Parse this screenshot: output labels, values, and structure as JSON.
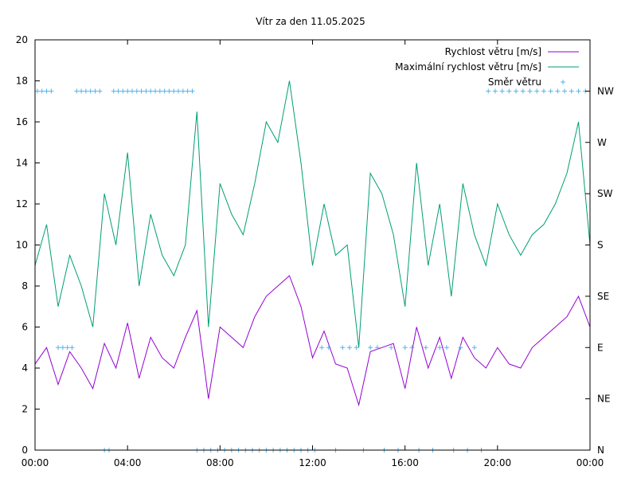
{
  "chart_data": {
    "type": "line",
    "title": "Vítr za den 11.05.2025",
    "xlabel": "",
    "ylabel": "",
    "xlim": [
      0,
      24
    ],
    "ylim": [
      0,
      20
    ],
    "x_ticks": [
      {
        "value": 0,
        "label": "00:00"
      },
      {
        "value": 4,
        "label": "04:00"
      },
      {
        "value": 8,
        "label": "08:00"
      },
      {
        "value": 12,
        "label": "12:00"
      },
      {
        "value": 16,
        "label": "16:00"
      },
      {
        "value": 20,
        "label": "20:00"
      },
      {
        "value": 24,
        "label": "00:00"
      }
    ],
    "y_ticks": [
      0,
      2,
      4,
      6,
      8,
      10,
      12,
      14,
      16,
      18,
      20
    ],
    "y2_ticks": [
      {
        "value": 0,
        "label": "N"
      },
      {
        "value": 2.5,
        "label": "NE"
      },
      {
        "value": 5,
        "label": "E"
      },
      {
        "value": 7.5,
        "label": "SE"
      },
      {
        "value": 10,
        "label": "S"
      },
      {
        "value": 12.5,
        "label": "SW"
      },
      {
        "value": 15,
        "label": "W"
      },
      {
        "value": 17.5,
        "label": "NW"
      }
    ],
    "grid": false,
    "legend_position": "top-right",
    "series": [
      {
        "name": "Rychlost větru [m/s]",
        "color": "#9400d3",
        "style": "line",
        "x": [
          0,
          0.5,
          1,
          1.5,
          2,
          2.5,
          3,
          3.5,
          4,
          4.5,
          5,
          5.5,
          6,
          6.5,
          7,
          7.5,
          8,
          8.5,
          9,
          9.5,
          10,
          10.5,
          11,
          11.5,
          12,
          12.5,
          13,
          13.5,
          14,
          14.5,
          15,
          15.5,
          16,
          16.5,
          17,
          17.5,
          18,
          18.5,
          19,
          19.5,
          20,
          20.5,
          21,
          21.5,
          22,
          22.5,
          23,
          23.5,
          24
        ],
        "values": [
          4.2,
          5.0,
          3.2,
          4.8,
          4.0,
          3.0,
          5.2,
          4.0,
          6.2,
          3.5,
          5.5,
          4.5,
          4.0,
          5.5,
          6.8,
          2.5,
          6.0,
          5.5,
          5.0,
          6.5,
          7.5,
          8.0,
          8.5,
          7.0,
          4.5,
          5.8,
          4.2,
          4.0,
          2.2,
          4.8,
          5.0,
          5.2,
          3.0,
          6.0,
          4.0,
          5.5,
          3.5,
          5.5,
          4.5,
          4.0,
          5.0,
          4.2,
          4.0,
          5.0,
          5.5,
          6.0,
          6.5,
          7.5,
          6.0
        ]
      },
      {
        "name": "Maximální rychlost větru [m/s]",
        "color": "#009e73",
        "style": "line",
        "x": [
          0,
          0.5,
          1,
          1.5,
          2,
          2.5,
          3,
          3.5,
          4,
          4.5,
          5,
          5.5,
          6,
          6.5,
          7,
          7.5,
          8,
          8.5,
          9,
          9.5,
          10,
          10.5,
          11,
          11.5,
          12,
          12.5,
          13,
          13.5,
          14,
          14.5,
          15,
          15.5,
          16,
          16.5,
          17,
          17.5,
          18,
          18.5,
          19,
          19.5,
          20,
          20.5,
          21,
          21.5,
          22,
          22.5,
          23,
          23.5,
          24
        ],
        "values": [
          9.0,
          11.0,
          7.0,
          9.5,
          8.0,
          6.0,
          12.5,
          10.0,
          14.5,
          8.0,
          11.5,
          9.5,
          8.5,
          10.0,
          16.5,
          6.0,
          13.0,
          11.5,
          10.5,
          13.0,
          16.0,
          15.0,
          18.0,
          14.0,
          9.0,
          12.0,
          9.5,
          10.0,
          5.0,
          13.5,
          12.5,
          10.5,
          7.0,
          14.0,
          9.0,
          12.0,
          7.5,
          13.0,
          10.5,
          9.0,
          12.0,
          10.5,
          9.5,
          10.5,
          11.0,
          12.0,
          13.5,
          16.0,
          10.0
        ]
      },
      {
        "name": "Směr větru",
        "color": "#56b4e9",
        "style": "points",
        "axis": "y2",
        "x": [
          0.1,
          0.3,
          0.5,
          0.7,
          1.0,
          1.2,
          1.4,
          1.6,
          1.8,
          2.0,
          2.2,
          2.4,
          2.6,
          2.8,
          3.0,
          3.2,
          3.4,
          3.6,
          3.8,
          4.0,
          4.2,
          4.4,
          4.6,
          4.8,
          5.0,
          5.2,
          5.4,
          5.6,
          5.8,
          6.0,
          6.2,
          6.4,
          6.6,
          6.8,
          7.0,
          7.3,
          7.6,
          7.9,
          8.2,
          8.5,
          8.8,
          9.1,
          9.4,
          9.7,
          10.0,
          10.3,
          10.6,
          10.9,
          11.2,
          11.5,
          11.8,
          12.1,
          12.4,
          12.7,
          13.0,
          13.3,
          13.6,
          13.9,
          14.2,
          14.5,
          14.8,
          15.1,
          15.4,
          15.7,
          16.0,
          16.3,
          16.6,
          16.9,
          17.2,
          17.5,
          17.8,
          18.1,
          18.4,
          18.7,
          19.0,
          19.3,
          19.6,
          19.9,
          20.2,
          20.5,
          20.8,
          21.1,
          21.4,
          21.7,
          22.0,
          22.3,
          22.6,
          22.9,
          23.2,
          23.5,
          23.8
        ],
        "values": [
          17.5,
          17.5,
          17.5,
          17.5,
          5,
          5,
          5,
          5,
          17.5,
          17.5,
          17.5,
          17.5,
          17.5,
          17.5,
          0,
          0,
          17.5,
          17.5,
          17.5,
          17.5,
          17.5,
          17.5,
          17.5,
          17.5,
          17.5,
          17.5,
          17.5,
          17.5,
          17.5,
          17.5,
          17.5,
          17.5,
          17.5,
          17.5,
          0,
          0,
          0,
          0,
          0,
          0,
          0,
          0,
          0,
          0,
          0,
          0,
          0,
          0,
          0,
          0,
          0,
          0,
          5,
          5,
          0,
          5,
          5,
          5,
          0,
          5,
          5,
          0,
          5,
          0,
          5,
          5,
          0,
          5,
          0,
          5,
          5,
          0,
          5,
          0,
          5,
          0,
          17.5,
          17.5,
          17.5,
          17.5,
          17.5,
          17.5,
          17.5,
          17.5,
          17.5,
          17.5,
          17.5,
          17.5,
          17.5,
          17.5,
          17.5
        ]
      }
    ]
  }
}
